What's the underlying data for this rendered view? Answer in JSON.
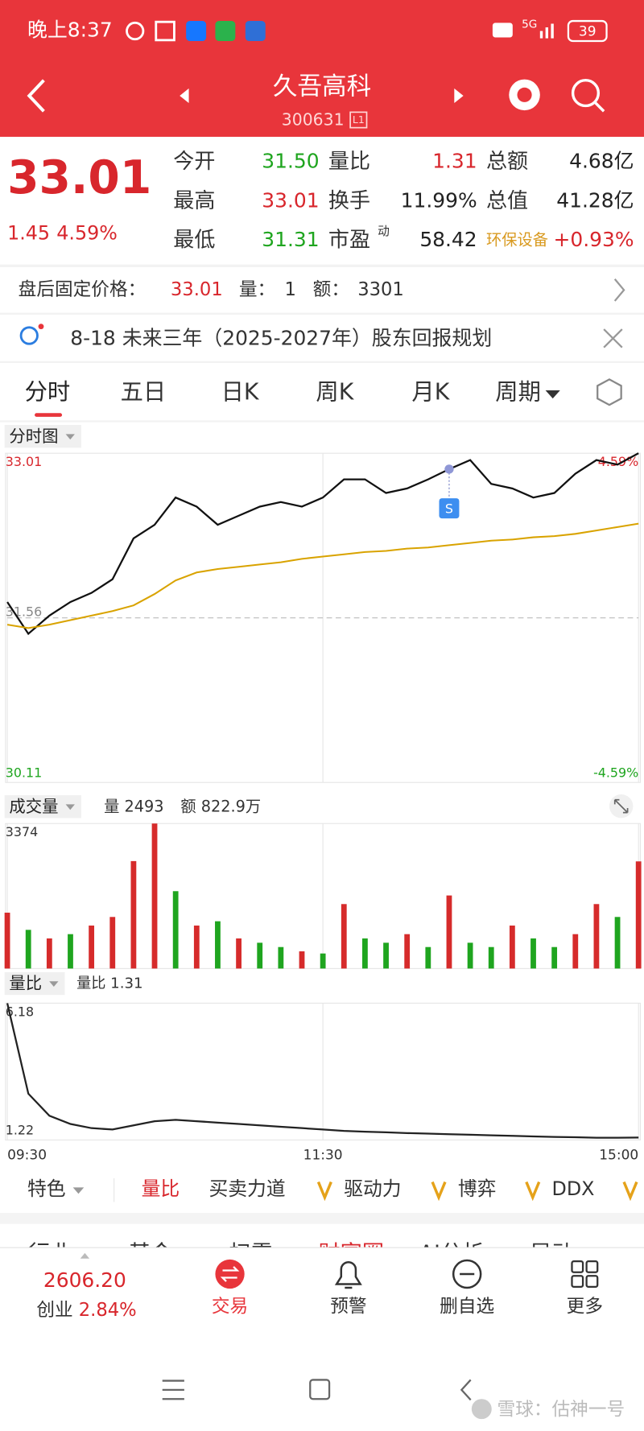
{
  "status_bar": {
    "time": "晚上8:37",
    "network": "5G",
    "battery": "39"
  },
  "header": {
    "title": "久吾高科",
    "code": "300631",
    "level": "L1"
  },
  "quote": {
    "price": "33.01",
    "change": "1.45",
    "change_pct": "4.59%",
    "stats": [
      {
        "label": "今开",
        "value": "31.50"
      },
      {
        "label": "量比",
        "value": "1.31"
      },
      {
        "label": "总额",
        "value": "4.68亿"
      },
      {
        "label": "最高",
        "value": "33.01"
      },
      {
        "label": "换手",
        "value": "11.99%"
      },
      {
        "label": "总值",
        "value": "41.28亿"
      },
      {
        "label": "最低",
        "value": "31.31"
      },
      {
        "label": "市盈",
        "sup": "动",
        "value": "58.42"
      },
      {
        "label": "环保设备",
        "value": "+0.93%"
      }
    ]
  },
  "after_hours": {
    "label": "盘后固定价格：",
    "price": "33.01",
    "volume_label": "量：",
    "volume": "1",
    "amount_label": "额：",
    "amount": "3301"
  },
  "notice": {
    "text": "8-18 未来三年（2025-2027年）股东回报规划"
  },
  "tabs": [
    "分时",
    "五日",
    "日K",
    "周K",
    "月K",
    "周期"
  ],
  "chart_data": [
    {
      "type": "line",
      "title": "分时图",
      "x": [
        0,
        8,
        16,
        24,
        32,
        40,
        48,
        56,
        64,
        72,
        80,
        88,
        96,
        104,
        112,
        120,
        128,
        136,
        144,
        152,
        160,
        168,
        176,
        184,
        192,
        200,
        208,
        216,
        224,
        232,
        240
      ],
      "xlim": [
        0,
        240
      ],
      "ylim": [
        30.11,
        33.01
      ],
      "yticks": [
        33.01,
        31.56,
        30.11
      ],
      "y2lim": [
        -4.59,
        4.59
      ],
      "y2ticks": [
        {
          "value": 4.59,
          "label": "4.59%"
        },
        {
          "value": -4.59,
          "label": "-4.59%"
        }
      ],
      "series": [
        {
          "color": "#111111",
          "values": [
            31.7,
            31.42,
            31.58,
            31.7,
            31.78,
            31.9,
            32.26,
            32.38,
            32.62,
            32.54,
            32.38,
            32.46,
            32.54,
            32.58,
            32.54,
            32.62,
            32.78,
            32.78,
            32.66,
            32.7,
            32.78,
            32.87,
            32.95,
            32.74,
            32.7,
            32.62,
            32.66,
            32.83,
            32.95,
            32.91,
            33.01
          ]
        },
        {
          "color": "#d9a300",
          "values": [
            31.5,
            31.47,
            31.5,
            31.54,
            31.58,
            31.62,
            31.67,
            31.77,
            31.89,
            31.96,
            31.99,
            32.01,
            32.03,
            32.05,
            32.08,
            32.1,
            32.12,
            32.14,
            32.15,
            32.17,
            32.18,
            32.2,
            32.22,
            32.24,
            32.25,
            32.27,
            32.28,
            32.3,
            32.33,
            32.36,
            32.39
          ]
        }
      ],
      "annotation": {
        "text": "S",
        "x": 168
      }
    },
    {
      "type": "bar",
      "title": "成交量",
      "labels": [
        "量 2493",
        "额 822.9万"
      ],
      "x": [
        0,
        8,
        16,
        24,
        32,
        40,
        48,
        56,
        64,
        72,
        80,
        88,
        96,
        104,
        112,
        120,
        128,
        136,
        144,
        152,
        160,
        168,
        176,
        184,
        192,
        200,
        208,
        216,
        224,
        232,
        240
      ],
      "xlim": [
        0,
        240
      ],
      "ylim": [
        0,
        3374
      ],
      "yticks": [
        3374
      ],
      "values": [
        1300,
        900,
        700,
        800,
        1000,
        1200,
        2500,
        3374,
        1800,
        1000,
        1100,
        700,
        600,
        500,
        400,
        350,
        1500,
        700,
        600,
        800,
        500,
        1700,
        600,
        500,
        1000,
        700,
        500,
        800,
        1500,
        1200,
        2493
      ],
      "colors": [
        "#d62b2b",
        "#1fa51f",
        "#d62b2b",
        "#1fa51f",
        "#d62b2b",
        "#d62b2b",
        "#d62b2b",
        "#d62b2b",
        "#1fa51f",
        "#d62b2b",
        "#1fa51f",
        "#d62b2b",
        "#1fa51f",
        "#1fa51f",
        "#d62b2b",
        "#1fa51f",
        "#d62b2b",
        "#1fa51f",
        "#1fa51f",
        "#d62b2b",
        "#1fa51f",
        "#d62b2b",
        "#1fa51f",
        "#1fa51f",
        "#d62b2b",
        "#1fa51f",
        "#1fa51f",
        "#d62b2b",
        "#d62b2b",
        "#1fa51f",
        "#d62b2b"
      ]
    },
    {
      "type": "line",
      "title": "量比",
      "label": "量比 1.31",
      "x": [
        0,
        8,
        16,
        24,
        32,
        40,
        48,
        56,
        64,
        72,
        80,
        88,
        96,
        104,
        112,
        120,
        128,
        136,
        144,
        152,
        160,
        168,
        176,
        184,
        192,
        200,
        208,
        216,
        224,
        232,
        240
      ],
      "xlim": [
        0,
        240
      ],
      "ylim": [
        1.22,
        6.18
      ],
      "yticks": [
        6.18,
        1.22
      ],
      "xticks": [
        {
          "value": 0,
          "label": "09:30"
        },
        {
          "value": 120,
          "label": "11:30"
        },
        {
          "value": 240,
          "label": "15:00"
        }
      ],
      "series": [
        {
          "color": "#222222",
          "values": [
            6.18,
            2.9,
            2.1,
            1.8,
            1.65,
            1.6,
            1.75,
            1.9,
            1.95,
            1.9,
            1.85,
            1.8,
            1.75,
            1.7,
            1.65,
            1.6,
            1.55,
            1.52,
            1.5,
            1.47,
            1.45,
            1.43,
            1.41,
            1.39,
            1.37,
            1.35,
            1.33,
            1.32,
            1.3,
            1.3,
            1.31
          ]
        }
      ]
    }
  ],
  "indicators": [
    "特色",
    "量比",
    "买卖力道",
    "驱动力",
    "博弈",
    "DDX"
  ],
  "more_tabs": [
    "行业",
    "基金",
    "扫雷",
    "财富圈",
    "AI分析",
    "异动"
  ],
  "bottom_nav": {
    "index_value": "2606.20",
    "index_name": "创业",
    "index_change": "2.84%",
    "items": [
      "交易",
      "预警",
      "删自选",
      "更多"
    ]
  },
  "watermark": "雪球：估神一号"
}
